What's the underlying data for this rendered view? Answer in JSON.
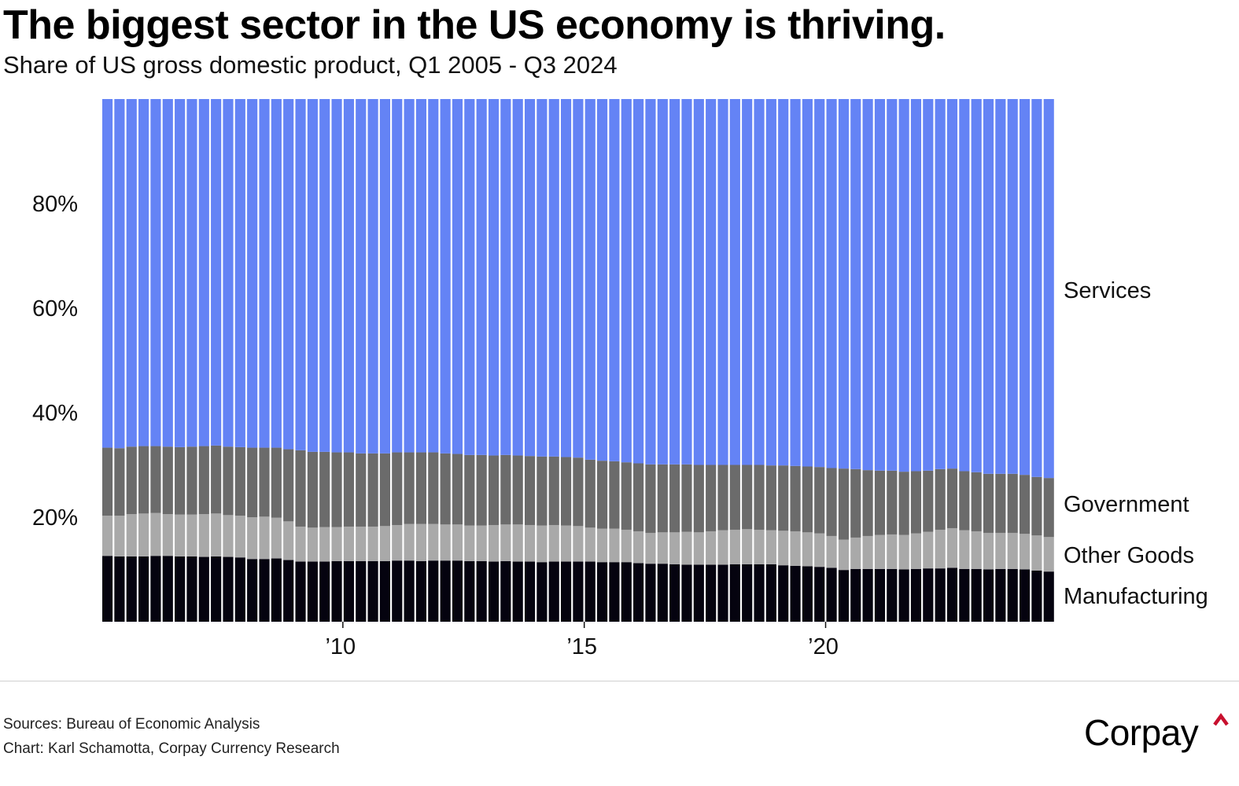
{
  "header": {
    "title": "The biggest sector in the US economy is thriving.",
    "subtitle": "Share of US gross domestic product, Q1 2005 - Q3 2024"
  },
  "footer": {
    "sources": "Sources: Bureau of Economic Analysis",
    "credit": "Chart: Karl Schamotta, Corpay Currency Research",
    "logo_text": "Corpay",
    "logo_icon": "caret-up-icon"
  },
  "colors": {
    "services": "#6483f5",
    "government": "#6b6b6b",
    "other_goods": "#a9a9a9",
    "manufacturing": "#05030f",
    "logo_accent": "#c8102e"
  },
  "chart_data": {
    "type": "bar",
    "stacked": true,
    "title": "The biggest sector in the US economy is thriving.",
    "subtitle": "Share of US gross domestic product, Q1 2005 - Q3 2024",
    "xlabel": "",
    "ylabel": "",
    "ylim": [
      0,
      100
    ],
    "y_ticks": [
      20,
      40,
      60,
      80
    ],
    "y_tick_labels": [
      "20%",
      "40%",
      "60%",
      "80%"
    ],
    "x_ticks": [
      {
        "category": "2010Q1",
        "label": "’10"
      },
      {
        "category": "2015Q1",
        "label": "’15"
      },
      {
        "category": "2020Q1",
        "label": "’20"
      }
    ],
    "grid": false,
    "legend": "direct labels at right",
    "categories": [
      "2005Q1",
      "2005Q2",
      "2005Q3",
      "2005Q4",
      "2006Q1",
      "2006Q2",
      "2006Q3",
      "2006Q4",
      "2007Q1",
      "2007Q2",
      "2007Q3",
      "2007Q4",
      "2008Q1",
      "2008Q2",
      "2008Q3",
      "2008Q4",
      "2009Q1",
      "2009Q2",
      "2009Q3",
      "2009Q4",
      "2010Q1",
      "2010Q2",
      "2010Q3",
      "2010Q4",
      "2011Q1",
      "2011Q2",
      "2011Q3",
      "2011Q4",
      "2012Q1",
      "2012Q2",
      "2012Q3",
      "2012Q4",
      "2013Q1",
      "2013Q2",
      "2013Q3",
      "2013Q4",
      "2014Q1",
      "2014Q2",
      "2014Q3",
      "2014Q4",
      "2015Q1",
      "2015Q2",
      "2015Q3",
      "2015Q4",
      "2016Q1",
      "2016Q2",
      "2016Q3",
      "2016Q4",
      "2017Q1",
      "2017Q2",
      "2017Q3",
      "2017Q4",
      "2018Q1",
      "2018Q2",
      "2018Q3",
      "2018Q4",
      "2019Q1",
      "2019Q2",
      "2019Q3",
      "2019Q4",
      "2020Q1",
      "2020Q2",
      "2020Q3",
      "2020Q4",
      "2021Q1",
      "2021Q2",
      "2021Q3",
      "2021Q4",
      "2022Q1",
      "2022Q2",
      "2022Q3",
      "2022Q4",
      "2023Q1",
      "2023Q2",
      "2023Q3",
      "2023Q4",
      "2024Q1",
      "2024Q2",
      "2024Q3"
    ],
    "series": [
      {
        "name": "Manufacturing",
        "values": [
          12.6,
          12.5,
          12.5,
          12.5,
          12.6,
          12.6,
          12.5,
          12.5,
          12.4,
          12.5,
          12.4,
          12.3,
          12.0,
          12.0,
          12.1,
          11.8,
          11.5,
          11.5,
          11.5,
          11.6,
          11.6,
          11.6,
          11.6,
          11.6,
          11.7,
          11.7,
          11.6,
          11.7,
          11.7,
          11.7,
          11.6,
          11.6,
          11.5,
          11.6,
          11.5,
          11.5,
          11.4,
          11.5,
          11.5,
          11.5,
          11.5,
          11.4,
          11.4,
          11.4,
          11.2,
          11.1,
          11.1,
          11.0,
          10.9,
          10.9,
          10.9,
          10.9,
          11.0,
          11.0,
          11.0,
          11.0,
          10.8,
          10.7,
          10.6,
          10.5,
          10.3,
          9.9,
          10.1,
          10.1,
          10.1,
          10.1,
          10.0,
          10.1,
          10.2,
          10.2,
          10.3,
          10.1,
          10.1,
          10.0,
          10.1,
          10.1,
          10.0,
          9.8,
          9.6
        ]
      },
      {
        "name": "Other Goods",
        "values": [
          7.7,
          7.8,
          8.1,
          8.2,
          8.2,
          8.0,
          8.0,
          8.0,
          8.2,
          8.2,
          8.0,
          8.0,
          8.0,
          8.1,
          7.8,
          7.4,
          6.7,
          6.5,
          6.6,
          6.5,
          6.6,
          6.6,
          6.6,
          6.7,
          6.8,
          7.0,
          7.1,
          7.0,
          6.9,
          6.9,
          6.8,
          6.8,
          7.0,
          7.0,
          7.1,
          7.0,
          7.0,
          7.0,
          6.9,
          6.8,
          6.5,
          6.4,
          6.4,
          6.2,
          6.1,
          5.9,
          6.0,
          6.1,
          6.3,
          6.2,
          6.4,
          6.6,
          6.6,
          6.7,
          6.6,
          6.5,
          6.6,
          6.6,
          6.5,
          6.4,
          6.1,
          5.8,
          6.0,
          6.3,
          6.5,
          6.6,
          6.6,
          6.8,
          7.0,
          7.4,
          7.6,
          7.4,
          7.2,
          7.0,
          6.9,
          6.9,
          6.8,
          6.7,
          6.6
        ]
      },
      {
        "name": "Government",
        "values": [
          13.0,
          12.9,
          12.9,
          12.9,
          12.8,
          12.9,
          12.9,
          13.0,
          13.0,
          13.0,
          13.1,
          13.1,
          13.3,
          13.2,
          13.4,
          13.8,
          14.6,
          14.5,
          14.4,
          14.3,
          14.2,
          14.0,
          14.0,
          13.9,
          13.9,
          13.7,
          13.7,
          13.7,
          13.6,
          13.5,
          13.5,
          13.5,
          13.3,
          13.3,
          13.2,
          13.2,
          13.2,
          13.1,
          13.1,
          13.1,
          13.0,
          13.0,
          12.9,
          12.9,
          13.0,
          13.1,
          13.0,
          13.0,
          12.9,
          12.9,
          12.7,
          12.5,
          12.4,
          12.3,
          12.4,
          12.4,
          12.5,
          12.5,
          12.6,
          12.7,
          13.0,
          13.6,
          13.1,
          12.6,
          12.3,
          12.2,
          12.1,
          11.9,
          11.7,
          11.6,
          11.4,
          11.3,
          11.3,
          11.3,
          11.3,
          11.3,
          11.3,
          11.2,
          11.3
        ]
      },
      {
        "name": "Services",
        "values": [
          66.7,
          66.8,
          66.5,
          66.4,
          66.4,
          66.5,
          66.6,
          66.5,
          66.4,
          66.3,
          66.5,
          66.6,
          66.7,
          66.7,
          66.7,
          67.0,
          67.2,
          67.5,
          67.5,
          67.6,
          67.6,
          67.8,
          67.8,
          67.8,
          67.6,
          67.6,
          67.6,
          67.6,
          67.8,
          67.9,
          68.1,
          68.1,
          68.2,
          68.1,
          68.2,
          68.3,
          68.4,
          68.4,
          68.5,
          68.6,
          69.0,
          69.2,
          69.3,
          69.5,
          69.7,
          69.9,
          69.9,
          69.9,
          69.9,
          70.0,
          70.0,
          70.0,
          70.0,
          70.0,
          70.0,
          70.1,
          70.1,
          70.2,
          70.3,
          70.4,
          70.6,
          70.7,
          70.8,
          71.0,
          71.1,
          71.1,
          71.3,
          71.2,
          71.1,
          70.8,
          70.7,
          71.2,
          71.4,
          71.7,
          71.7,
          71.7,
          71.9,
          72.3,
          72.5
        ]
      }
    ]
  }
}
